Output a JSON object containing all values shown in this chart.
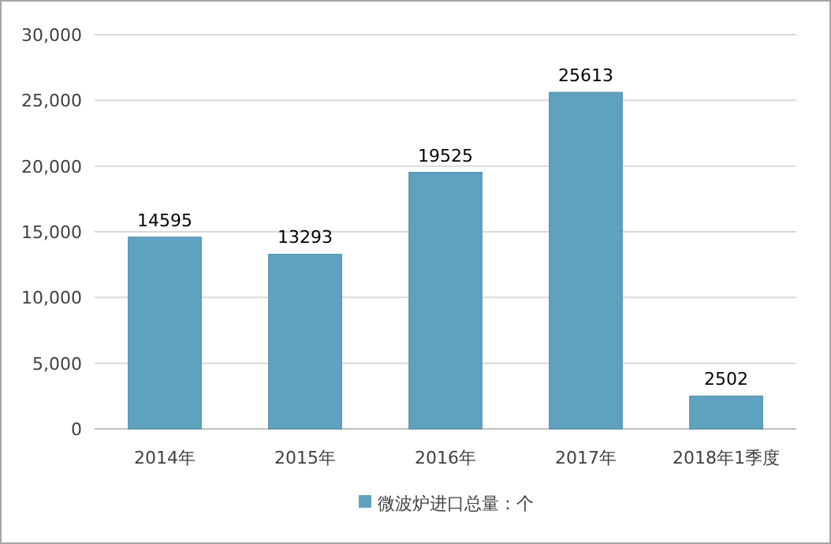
{
  "chart_data": {
    "type": "bar",
    "categories": [
      "2014年",
      "2015年",
      "2016年",
      "2017年",
      "2018年1季度"
    ],
    "series": [
      {
        "name": "微波炉进口总量：个",
        "color": "#5fa2c0",
        "values": [
          14595,
          13293,
          19525,
          25613,
          2502
        ]
      }
    ],
    "ylim": [
      0,
      30000
    ],
    "yticks": [
      0,
      {
        "value": 5000,
        "label": "5,000"
      },
      {
        "value": 10000,
        "label": "10,000"
      },
      {
        "value": 15000,
        "label": "15,000"
      },
      {
        "value": 20000,
        "label": "20,000"
      },
      {
        "value": 25000,
        "label": "25,000"
      },
      {
        "value": 30000,
        "label": "30,000"
      }
    ],
    "grid": "y",
    "legend": "bottom",
    "data_labels": true
  }
}
